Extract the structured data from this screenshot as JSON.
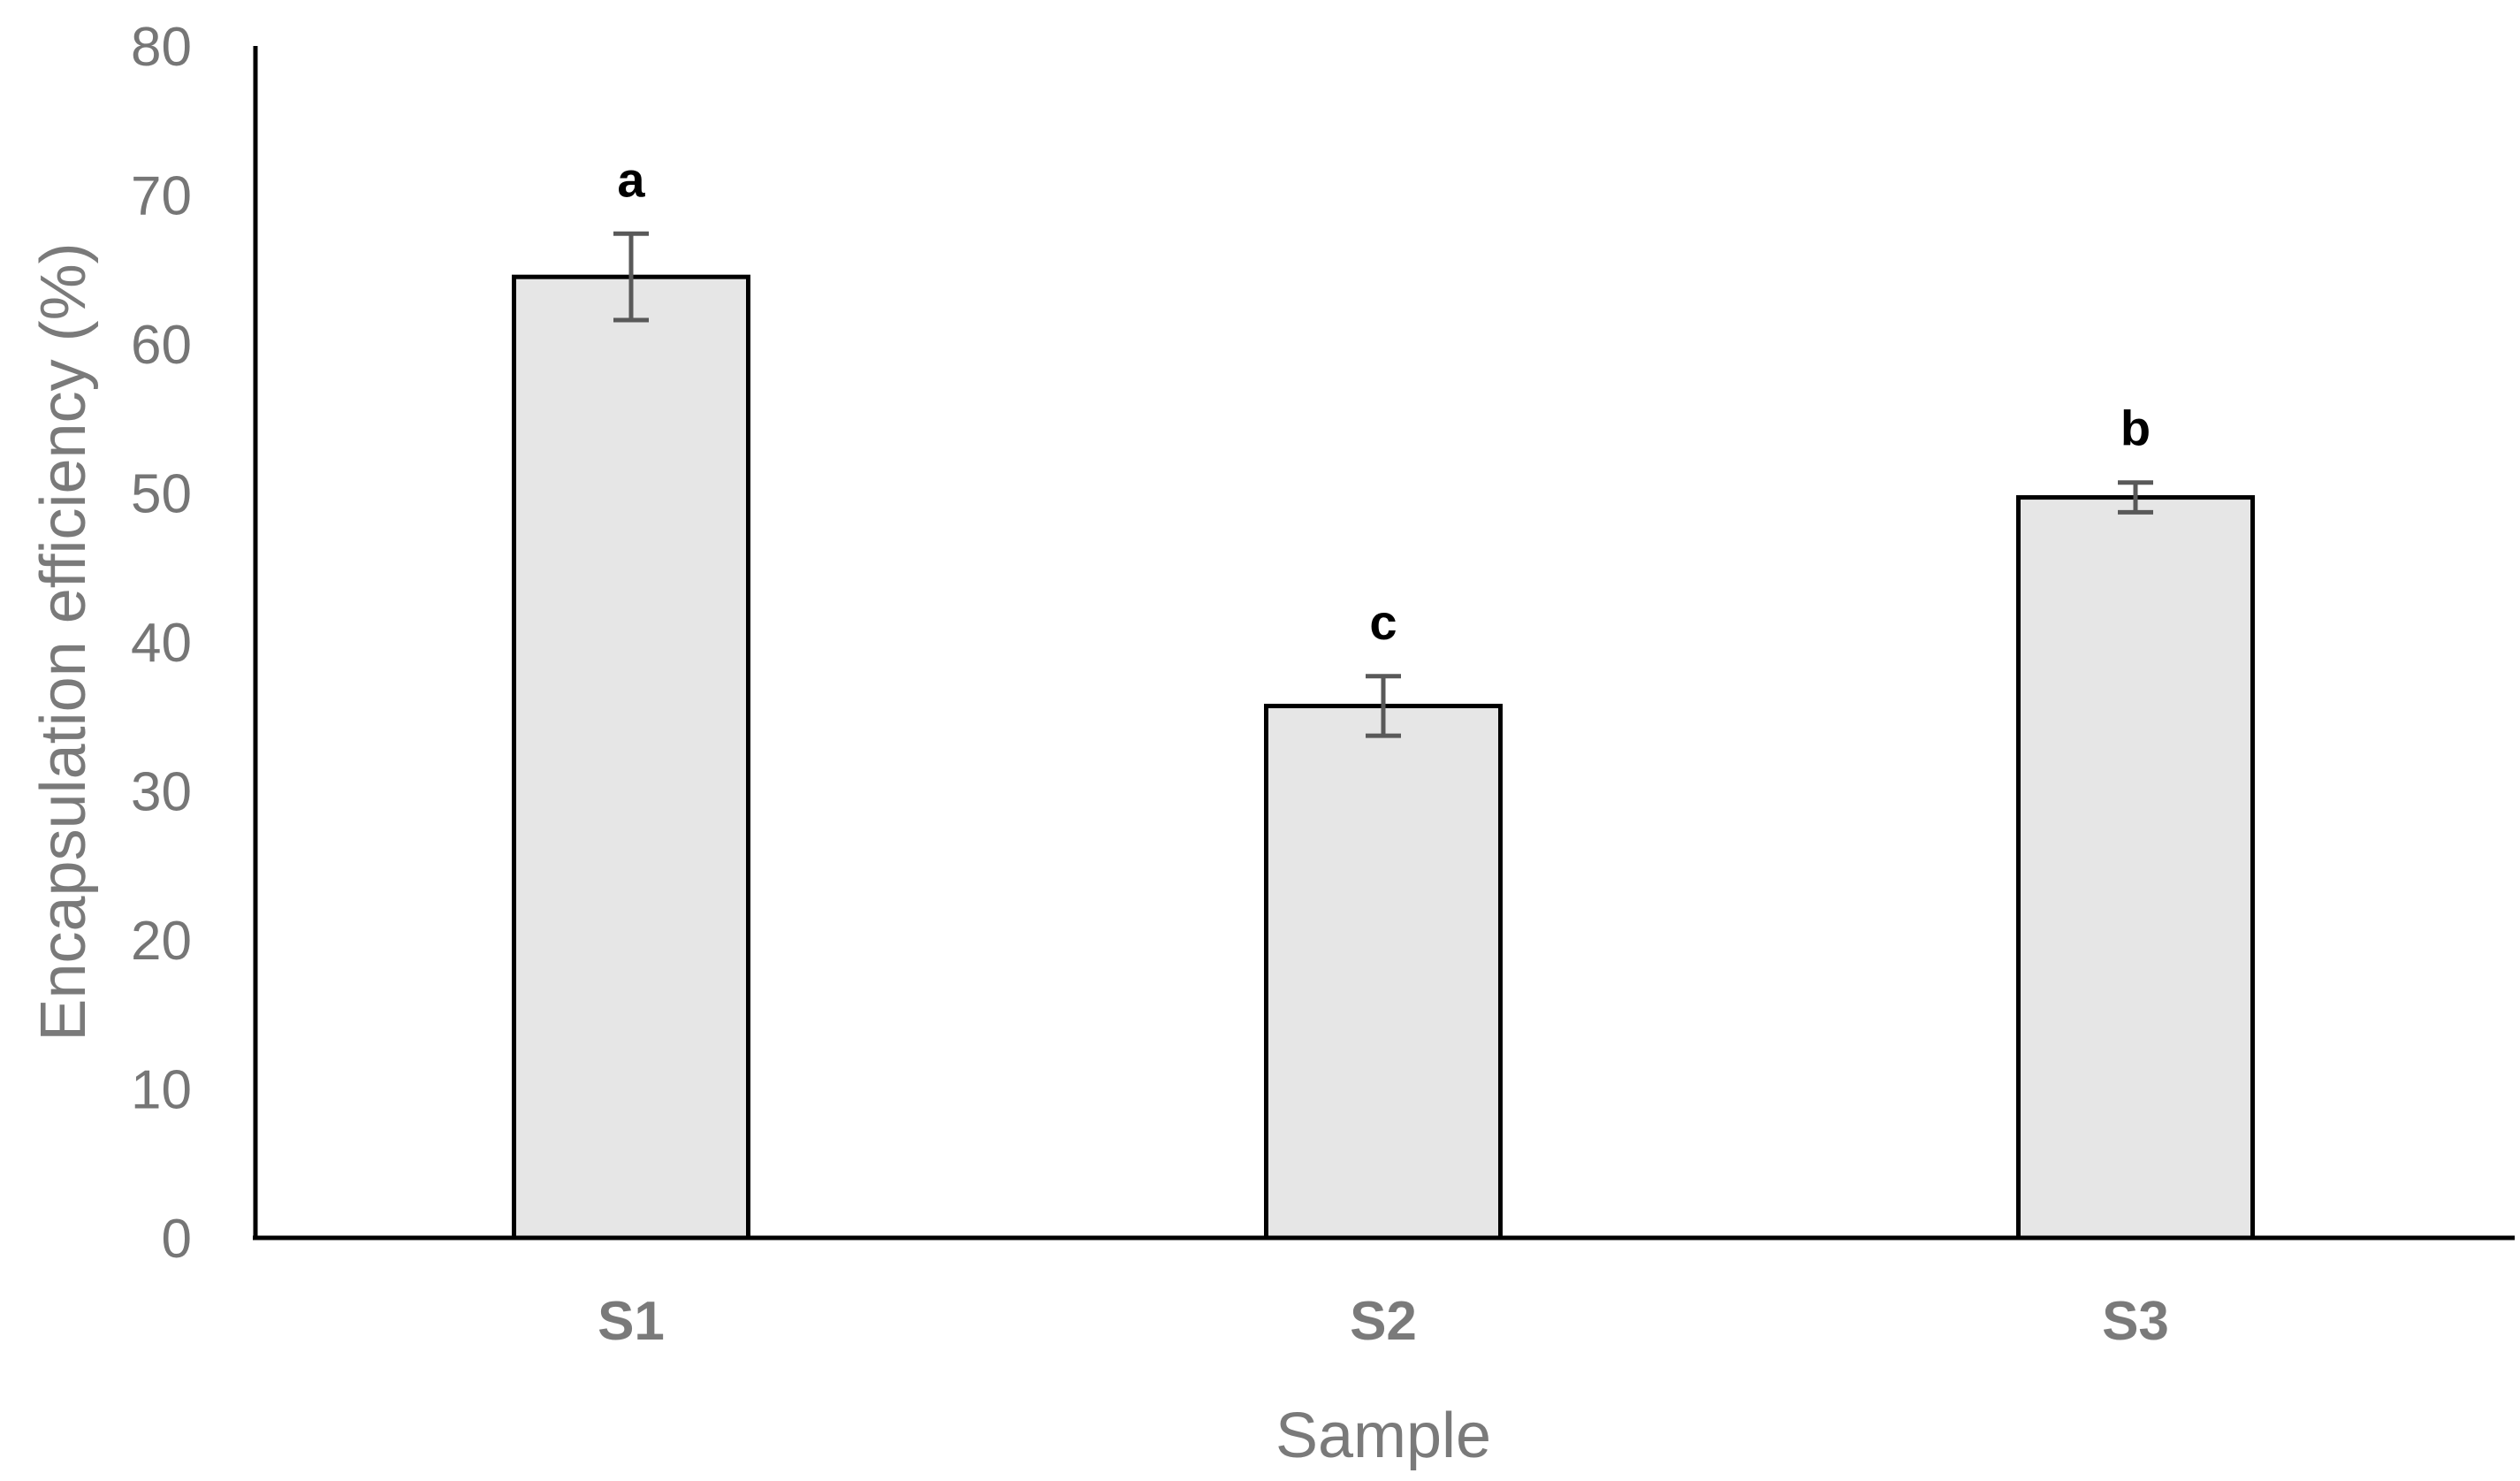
{
  "chart_data": {
    "type": "bar",
    "categories": [
      "S1",
      "S2",
      "S3"
    ],
    "values": [
      64.5,
      35.7,
      49.7
    ],
    "errors": [
      2.9,
      2.0,
      1.0
    ],
    "annotations": [
      "a",
      "c",
      "b"
    ],
    "xlabel": "Sample",
    "ylabel": "Encapsulation efficiency (%)",
    "ylim": [
      0,
      80
    ],
    "yticks": [
      "0",
      "10",
      "20",
      "30",
      "40",
      "50",
      "60",
      "70",
      "80"
    ],
    "grid": false,
    "legend": "none",
    "colors": {
      "bar_fill": "#e6e6e6",
      "bar_stroke": "#000000",
      "error_bar": "#595959",
      "axis": "#000000",
      "tick_label": "#767676",
      "axis_title": "#7a7a7a",
      "annotation": "#000000"
    }
  }
}
